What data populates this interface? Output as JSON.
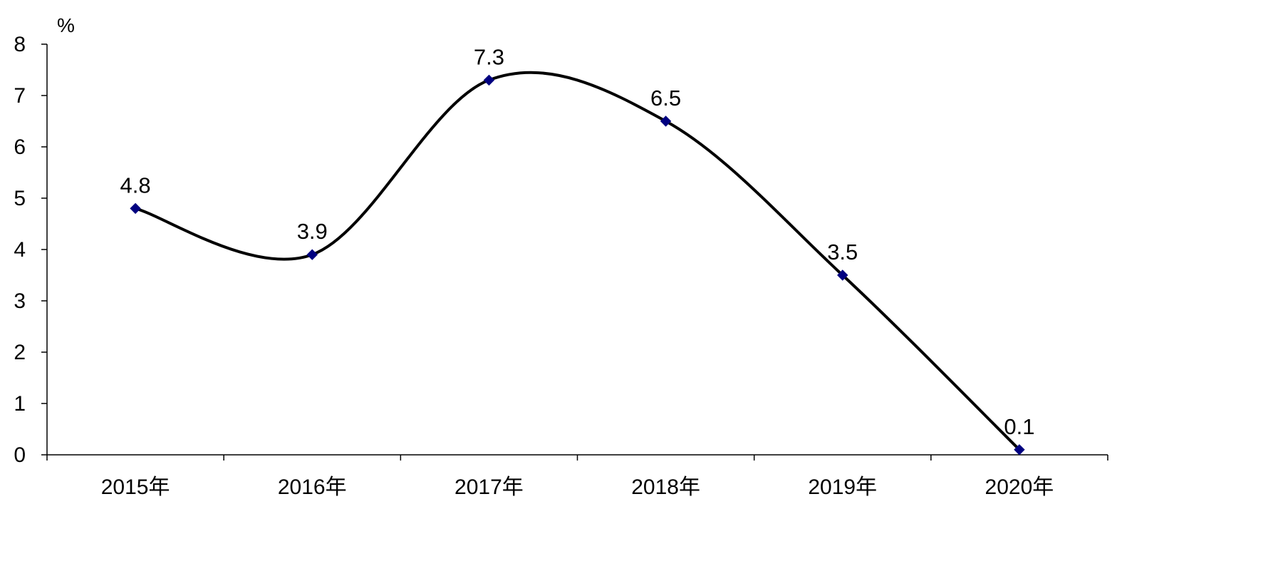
{
  "chart_data": {
    "type": "line",
    "smooth": true,
    "y_unit": "%",
    "categories": [
      "2015年",
      "2016年",
      "2017年",
      "2018年",
      "2019年",
      "2020年"
    ],
    "series": [
      {
        "values": [
          4.8,
          3.9,
          7.3,
          6.5,
          3.5,
          0.1
        ]
      }
    ],
    "data_labels": [
      "4.8",
      "3.9",
      "7.3",
      "6.5",
      "3.5",
      "0.1"
    ],
    "ylim": [
      0,
      8
    ],
    "yticks": [
      0,
      1,
      2,
      3,
      4,
      5,
      6,
      7,
      8
    ],
    "grid": false,
    "legend": "none",
    "colors": {
      "line": "#000000",
      "marker": "#000080"
    }
  }
}
